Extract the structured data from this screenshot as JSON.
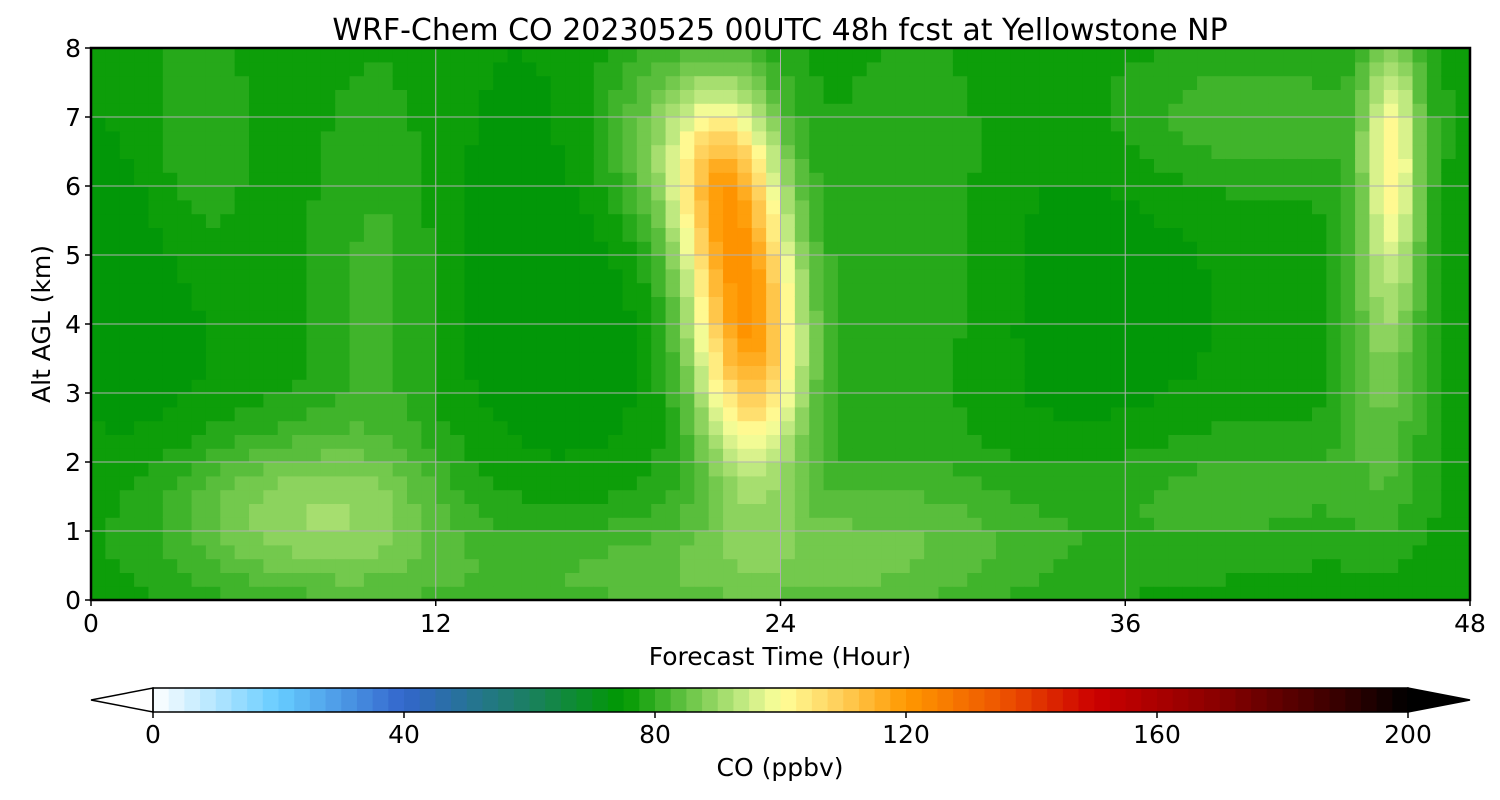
{
  "chart_data": {
    "type": "heatmap",
    "title": "WRF-Chem CO  20230525 00UTC 48h fcst at Yellowstone NP",
    "xlabel": "Forecast Time (Hour)",
    "ylabel": "Alt AGL (km)",
    "xlim": [
      0,
      48
    ],
    "ylim": [
      0,
      8
    ],
    "x_ticks": [
      0,
      12,
      24,
      36,
      48
    ],
    "y_ticks": [
      0,
      1,
      2,
      3,
      4,
      5,
      6,
      7,
      8
    ],
    "grid": true,
    "colorbar": {
      "label": "CO  (ppbv)",
      "range": [
        0,
        200
      ],
      "ticks": [
        0,
        40,
        80,
        120,
        160,
        200
      ],
      "step": 2.5,
      "extend": "both",
      "colors": [
        {
          "v": 0,
          "c": "#ffffff"
        },
        {
          "v": 20,
          "c": "#66ccff"
        },
        {
          "v": 40,
          "c": "#3366cc"
        },
        {
          "v": 60,
          "c": "#1a8060"
        },
        {
          "v": 75,
          "c": "#009900"
        },
        {
          "v": 95,
          "c": "#ccee88"
        },
        {
          "v": 100,
          "c": "#ffff99"
        },
        {
          "v": 110,
          "c": "#ffcc55"
        },
        {
          "v": 120,
          "c": "#ff9900"
        },
        {
          "v": 135,
          "c": "#ee5500"
        },
        {
          "v": 150,
          "c": "#cc0000"
        },
        {
          "v": 170,
          "c": "#880000"
        },
        {
          "v": 190,
          "c": "#330000"
        },
        {
          "v": 200,
          "c": "#000000"
        }
      ],
      "under_color": "#ffffff",
      "over_color": "#000000"
    },
    "field": {
      "background_ppbv": 76,
      "features": [
        {
          "t": 22.5,
          "z": 4.5,
          "st": 1.3,
          "sz": 1.6,
          "amp": 36
        },
        {
          "t": 23.6,
          "z": 3.4,
          "st": 1.1,
          "sz": 1.2,
          "amp": 16
        },
        {
          "t": 21.8,
          "z": 6.1,
          "st": 1.2,
          "sz": 0.9,
          "amp": 18
        },
        {
          "t": 20.0,
          "z": 6.7,
          "st": 1.8,
          "sz": 1.0,
          "amp": 10
        },
        {
          "t": 45.3,
          "z": 6.4,
          "st": 0.7,
          "sz": 1.3,
          "amp": 22
        },
        {
          "t": 45.0,
          "z": 3.8,
          "st": 1.0,
          "sz": 1.6,
          "amp": 10
        },
        {
          "t": 7.5,
          "z": 1.3,
          "st": 3.5,
          "sz": 0.8,
          "amp": 13
        },
        {
          "t": 10.0,
          "z": 4.5,
          "st": 1.6,
          "sz": 2.2,
          "amp": 5
        },
        {
          "t": 3.5,
          "z": 6.5,
          "st": 1.5,
          "sz": 1.5,
          "amp": 5
        },
        {
          "t": 27.0,
          "z": 0.9,
          "st": 6.0,
          "sz": 0.8,
          "amp": 7
        },
        {
          "t": 40.0,
          "z": 1.6,
          "st": 4.0,
          "sz": 0.7,
          "amp": 5
        },
        {
          "t": 40.0,
          "z": 7.0,
          "st": 4.0,
          "sz": 0.8,
          "amp": 6
        },
        {
          "t": 29.0,
          "z": 5.0,
          "st": 2.5,
          "sz": 2.5,
          "amp": 4
        },
        {
          "t": 2.0,
          "z": 4.8,
          "st": 2.0,
          "sz": 2.0,
          "amp": -4
        },
        {
          "t": 16.0,
          "z": 4.5,
          "st": 3.0,
          "sz": 2.5,
          "amp": -3
        },
        {
          "t": 34.0,
          "z": 4.5,
          "st": 3.5,
          "sz": 2.5,
          "amp": -3
        },
        {
          "t": 18.5,
          "z": 0.3,
          "st": 8.0,
          "sz": 0.6,
          "amp": 6
        }
      ]
    }
  }
}
